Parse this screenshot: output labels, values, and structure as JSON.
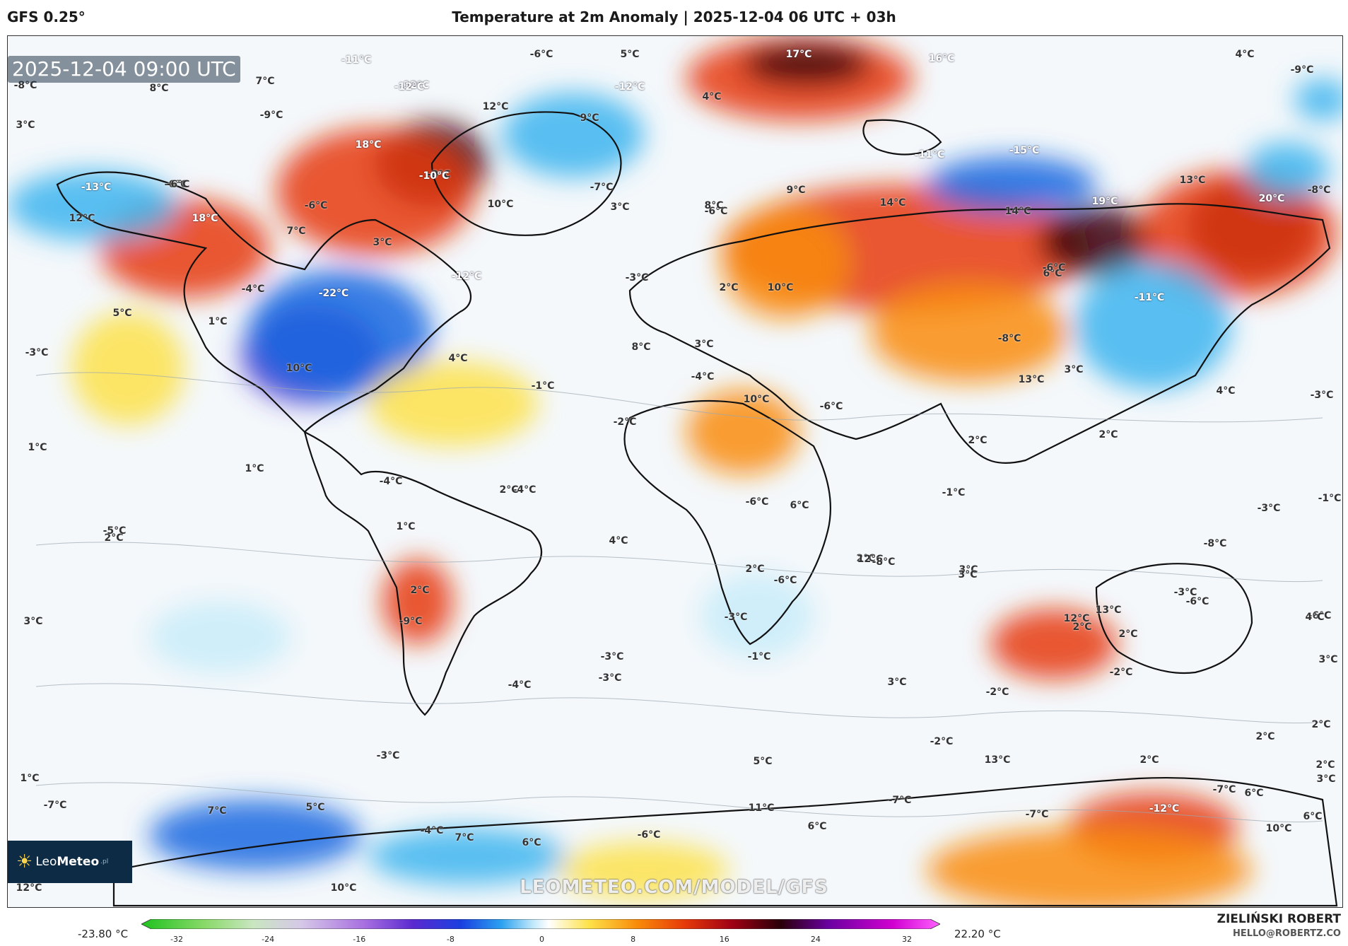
{
  "header": {
    "model": "GFS 0.25°",
    "title": "Temperature at 2m Anomaly | 2025-12-04 06 UTC + 03h"
  },
  "map": {
    "timestamp": "2025-12-04 09:00 UTC",
    "watermark": "LEOMETEO.COM/MODEL/GFS",
    "labels": [
      "-11°C",
      "-6°C",
      "5°C",
      "-12°C",
      "4°C",
      "-9°C",
      "-8°C",
      "8°C",
      "7°C",
      "17°C",
      "16°C",
      "-12°C",
      "-12°C",
      "12°C",
      "4°C",
      "3°C",
      "-9°C",
      "18°C",
      "9°C",
      "-9°C",
      "-6°C",
      "-13°C",
      "-6°C",
      "-10°C",
      "-7°C",
      "3°C",
      "-6°C",
      "-11°C",
      "-15°C",
      "13°C",
      "-8°C",
      "12°C",
      "18°C",
      "-6°C",
      "7°C",
      "10°C",
      "8°C",
      "9°C",
      "14°C",
      "14°C",
      "19°C",
      "20°C",
      "3°C",
      "-4°C",
      "-22°C",
      "-12°C",
      "6°C",
      "-3°C",
      "10°C",
      "-6°C",
      "-11°C",
      "5°C",
      "1°C",
      "-3°C",
      "10°C",
      "4°C",
      "2°C",
      "8°C",
      "-4°C",
      "10°C",
      "-8°C",
      "13°C",
      "-6°C",
      "3°C",
      "-3°C",
      "-2°C",
      "-1°C",
      "4°C",
      "2°C",
      "3°C",
      "2°C",
      "1°C",
      "1°C",
      "-4°C",
      "-4°C",
      "2°C",
      "-1°C",
      "-6°C",
      "6°C",
      "-1°C",
      "2°C",
      "1°C",
      "-3°C",
      "4°C",
      "-8°C",
      "2°C",
      "3°C",
      "-5°C",
      "13°C",
      "-3°C",
      "-6°C",
      "2°C",
      "-6°C",
      "12°C",
      "-8°C",
      "2°C",
      "-3°C",
      "3°C",
      "12°C",
      "3°C",
      "2°C",
      "-6°C",
      "4°C",
      "2°C",
      "3°C",
      "-3°C",
      "-1°C",
      "-9°C",
      "-3°C",
      "-4°C",
      "3°C",
      "-2°C",
      "-2°C",
      "2°C",
      "2°C",
      "2°C",
      "2°C",
      "-2°C",
      "1°C",
      "-3°C",
      "5°C",
      "13°C",
      "3°C",
      "-7°C",
      "-7°C",
      "-12°C",
      "-7°C",
      "6°C",
      "-7°C",
      "7°C",
      "5°C",
      "-4°C",
      "7°C",
      "6°C",
      "-6°C",
      "11°C",
      "6°C",
      "6°C",
      "10°C",
      "12°C",
      "10°C"
    ],
    "colors": {
      "land_line": "#111111",
      "contour": "#9aa6b0",
      "warm_dark": "#3a0010",
      "warm": "#e63a0a",
      "warm_mid": "#f98c0a",
      "warm_light": "#fde24a",
      "neutral": "#f4f8fb",
      "cool_light": "#c8ecf9",
      "cool": "#3db4ef",
      "cool_mid": "#1568e0",
      "cold": "#4a2ed0"
    }
  },
  "colorbar": {
    "min_label": "-23.80 °C",
    "max_label": "22.20 °C",
    "ticks": [
      "-32",
      "-24",
      "-16",
      "-8",
      "0",
      "8",
      "16",
      "24",
      "32"
    ]
  },
  "credits": {
    "author": "ZIELIŃSKI ROBERT",
    "email": "HELLO@ROBERTZ.CO"
  },
  "logo": {
    "brand_a": "Leo",
    "brand_b": "Meteo",
    "brand_c": ".pl"
  }
}
